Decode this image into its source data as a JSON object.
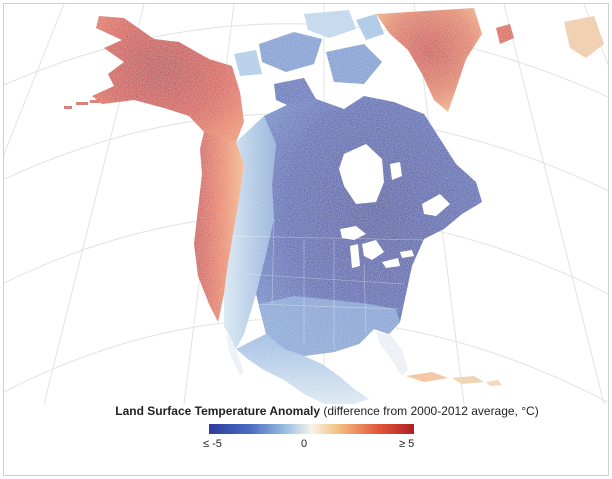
{
  "legend": {
    "title_bold": "Land Surface Temperature Anomaly",
    "title_rest": " (difference from 2000-2012 average, °C)",
    "tick_min": "≤ -5",
    "tick_mid": "0",
    "tick_max": "≥ 5",
    "colors": [
      "#2c3c9c",
      "#4a6cc0",
      "#a9cbe6",
      "#f7f3ea",
      "#f4c586",
      "#e3593c",
      "#b01f22"
    ]
  },
  "map": {
    "ocean_color": "#ffffff",
    "graticule_color": "#e3e3e3",
    "regions": {
      "alaska": "warm anomaly",
      "pacific_coast": "warm anomaly",
      "greenland": "warm anomaly",
      "canada_and_eastern_us": "cold anomaly"
    }
  }
}
